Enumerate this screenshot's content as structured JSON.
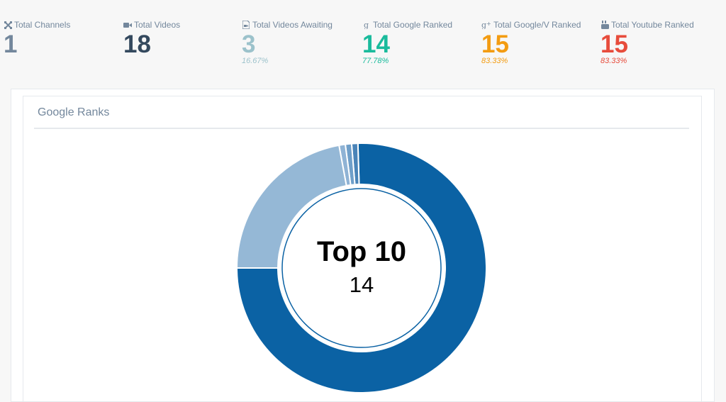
{
  "stats": [
    {
      "label": "Total Channels",
      "value": "1",
      "percent": "",
      "icon": "sitemap-icon",
      "color": "#73879c"
    },
    {
      "label": "Total Videos",
      "value": "18",
      "percent": "",
      "icon": "video-camera-icon",
      "color": "#34495e"
    },
    {
      "label": "Total Videos Awaiting",
      "value": "3",
      "percent": "16.67%",
      "icon": "file-video-icon",
      "color": "#9cc2cb"
    },
    {
      "label": "Total Google Ranked",
      "value": "14",
      "percent": "77.78%",
      "icon": "google-icon",
      "color": "#1abb9c"
    },
    {
      "label": "Total Google/V Ranked",
      "value": "15",
      "percent": "83.33%",
      "icon": "google-plus-icon",
      "color": "#f39c12"
    },
    {
      "label": "Total Youtube Ranked",
      "value": "15",
      "percent": "83.33%",
      "icon": "youtube-icon",
      "color": "#e74c3c"
    }
  ],
  "panel": {
    "title": "Google Ranks"
  },
  "chart_data": {
    "type": "pie",
    "donut": true,
    "center_label": "Top 10",
    "center_value": "14",
    "values": [
      14,
      0.15,
      0.15,
      0.15,
      4.1
    ],
    "colors": [
      "#0b62a4",
      "#4a84b8",
      "#6f9fc9",
      "#8fb3d5",
      "#95b8d6"
    ],
    "start_angle_deg": 180,
    "direction": "counterclockwise"
  }
}
